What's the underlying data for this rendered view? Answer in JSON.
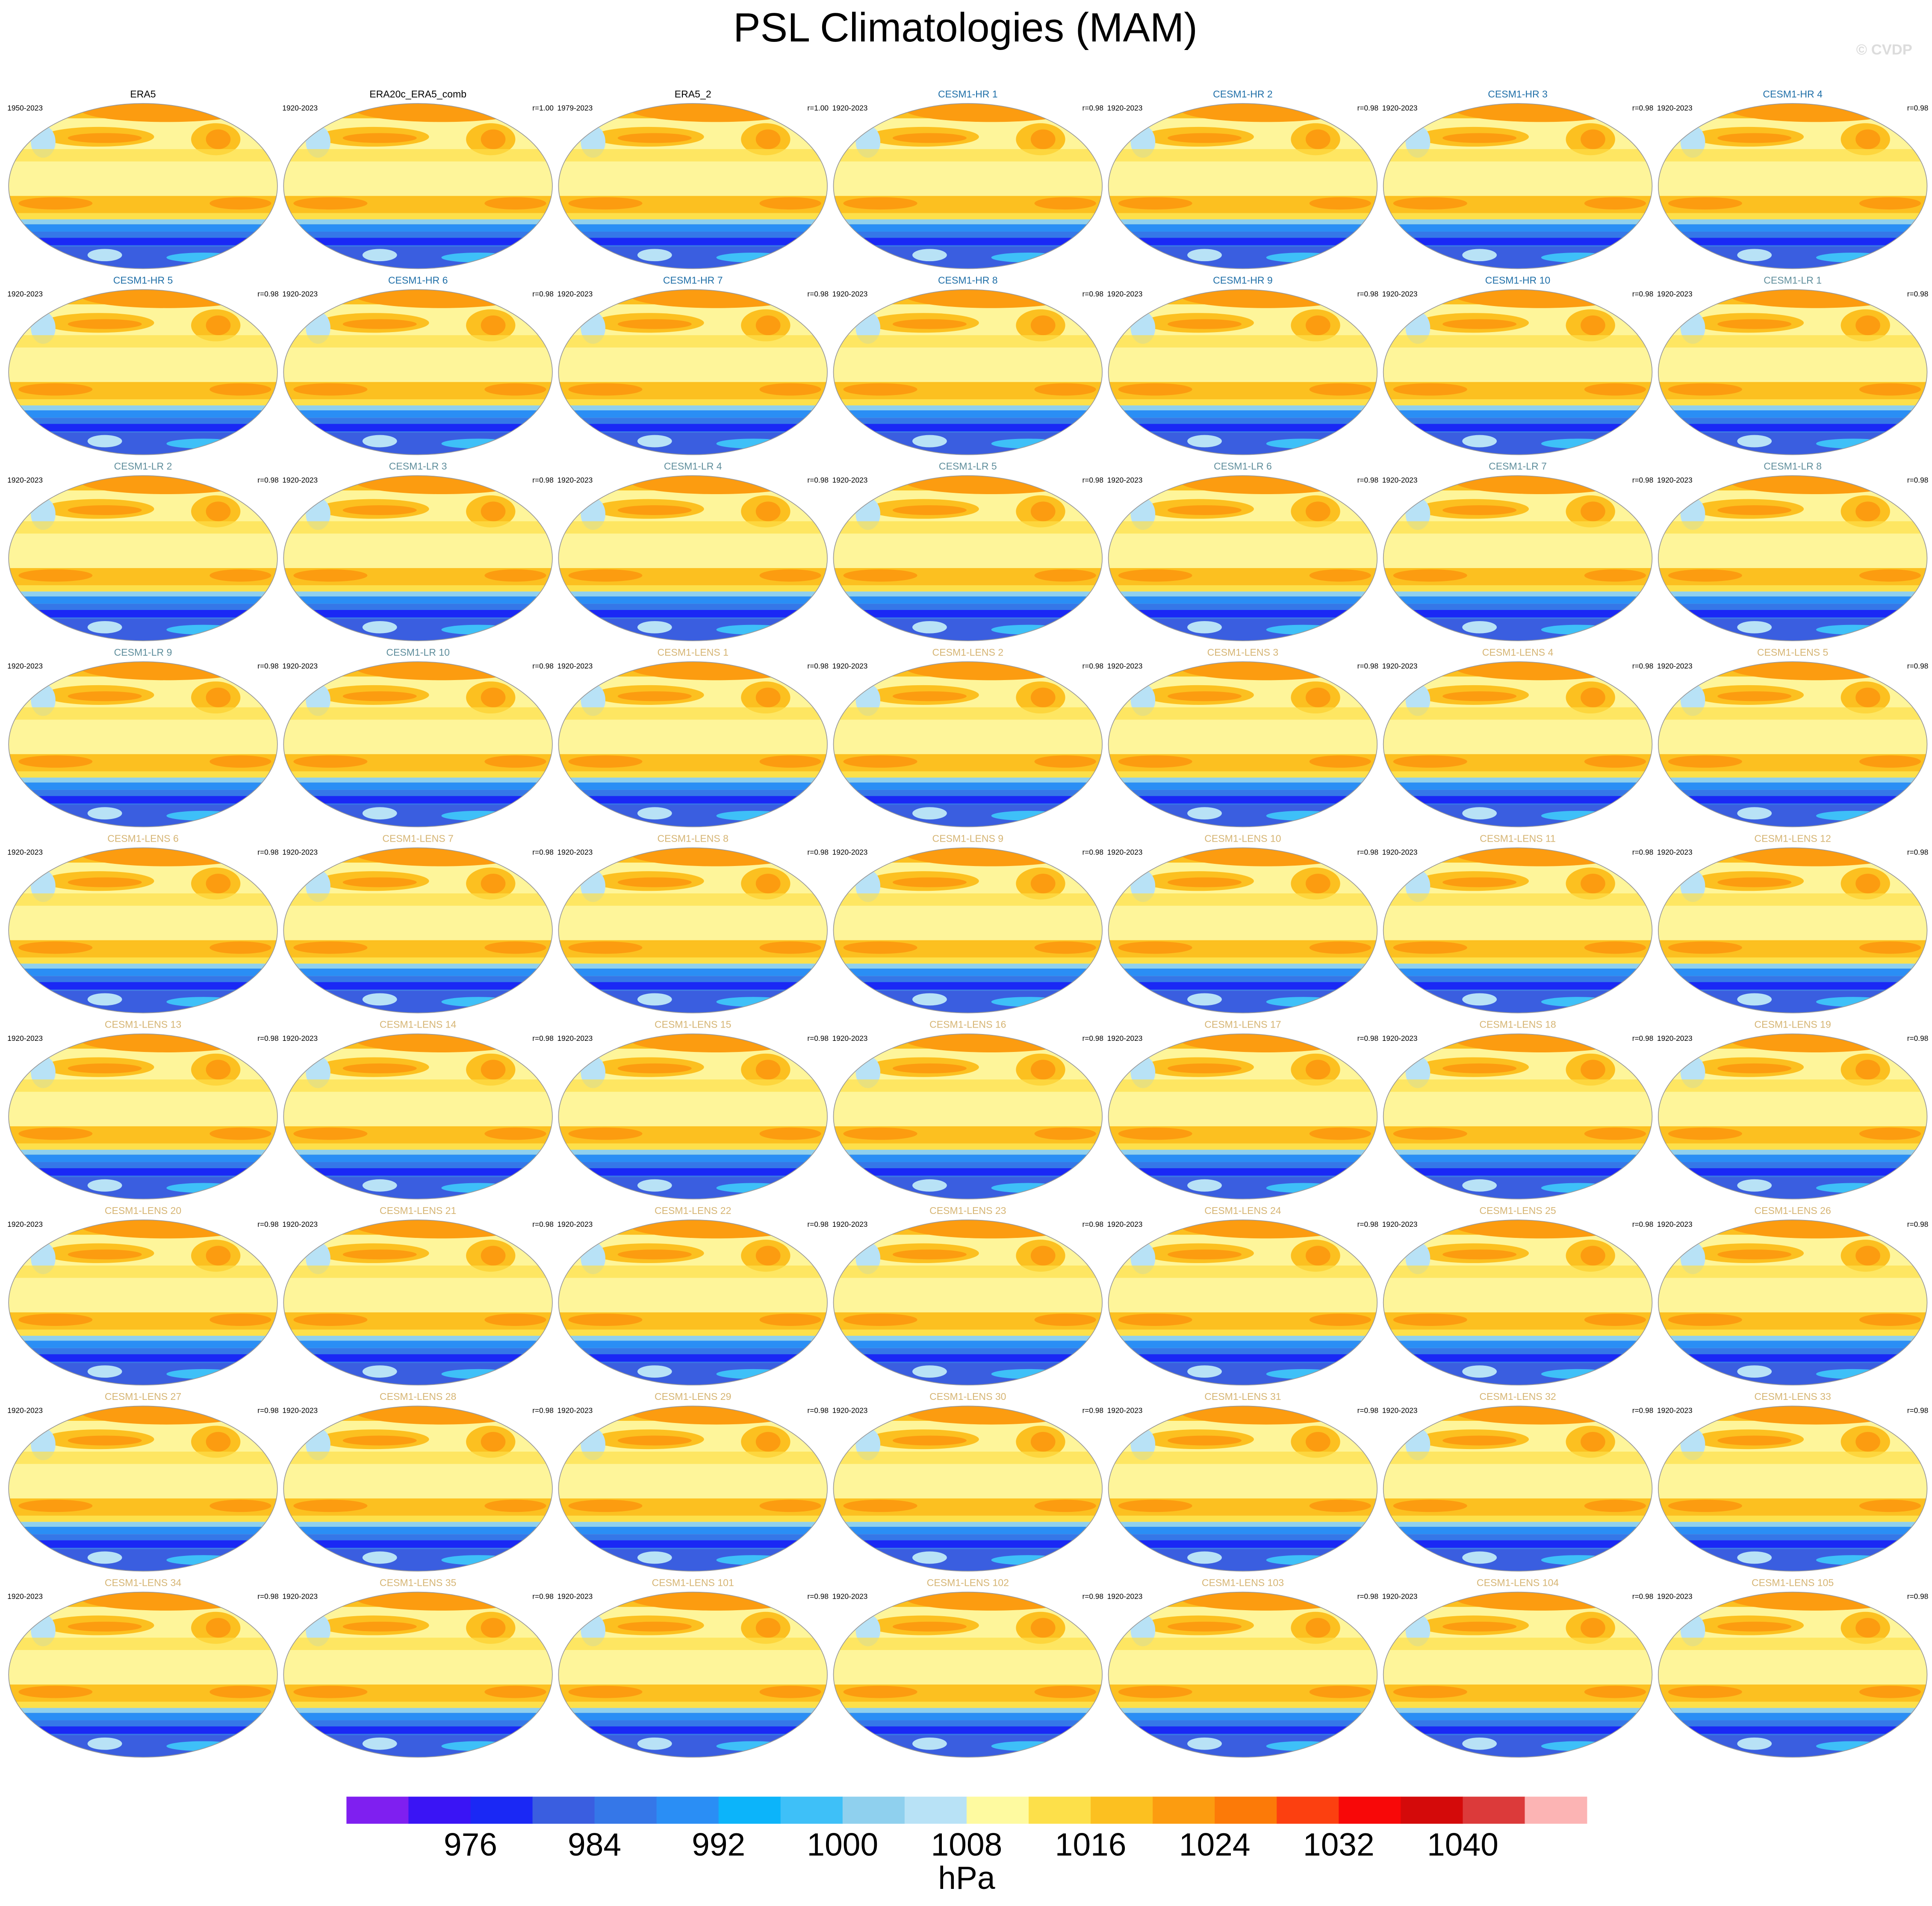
{
  "title": "PSL Climatologies (MAM)",
  "watermark": "© CVDP",
  "panels": [
    {
      "title": "ERA5",
      "period": "1950-2023",
      "r": null,
      "color": "#000000"
    },
    {
      "title": "ERA20c_ERA5_comb",
      "period": "1920-2023",
      "r": "r=1.00",
      "color": "#000000"
    },
    {
      "title": "ERA5_2",
      "period": "1979-2023",
      "r": "r=1.00",
      "color": "#000000"
    },
    {
      "title": "CESM1-HR 1",
      "period": "1920-2023",
      "r": "r=0.98",
      "color": "#1f6fa8"
    },
    {
      "title": "CESM1-HR 2",
      "period": "1920-2023",
      "r": "r=0.98",
      "color": "#1f6fa8"
    },
    {
      "title": "CESM1-HR 3",
      "period": "1920-2023",
      "r": "r=0.98",
      "color": "#1f6fa8"
    },
    {
      "title": "CESM1-HR 4",
      "period": "1920-2023",
      "r": "r=0.98",
      "color": "#1f6fa8"
    },
    {
      "title": "CESM1-HR 5",
      "period": "1920-2023",
      "r": "r=0.98",
      "color": "#1f6fa8"
    },
    {
      "title": "CESM1-HR 6",
      "period": "1920-2023",
      "r": "r=0.98",
      "color": "#1f6fa8"
    },
    {
      "title": "CESM1-HR 7",
      "period": "1920-2023",
      "r": "r=0.98",
      "color": "#1f6fa8"
    },
    {
      "title": "CESM1-HR 8",
      "period": "1920-2023",
      "r": "r=0.98",
      "color": "#1f6fa8"
    },
    {
      "title": "CESM1-HR 9",
      "period": "1920-2023",
      "r": "r=0.98",
      "color": "#1f6fa8"
    },
    {
      "title": "CESM1-HR 10",
      "period": "1920-2023",
      "r": "r=0.98",
      "color": "#1f6fa8"
    },
    {
      "title": "CESM1-LR 1",
      "period": "1920-2023",
      "r": "r=0.98",
      "color": "#5f8e9c"
    },
    {
      "title": "CESM1-LR 2",
      "period": "1920-2023",
      "r": "r=0.98",
      "color": "#5f8e9c"
    },
    {
      "title": "CESM1-LR 3",
      "period": "1920-2023",
      "r": "r=0.98",
      "color": "#5f8e9c"
    },
    {
      "title": "CESM1-LR 4",
      "period": "1920-2023",
      "r": "r=0.98",
      "color": "#5f8e9c"
    },
    {
      "title": "CESM1-LR 5",
      "period": "1920-2023",
      "r": "r=0.98",
      "color": "#5f8e9c"
    },
    {
      "title": "CESM1-LR 6",
      "period": "1920-2023",
      "r": "r=0.98",
      "color": "#5f8e9c"
    },
    {
      "title": "CESM1-LR 7",
      "period": "1920-2023",
      "r": "r=0.98",
      "color": "#5f8e9c"
    },
    {
      "title": "CESM1-LR 8",
      "period": "1920-2023",
      "r": "r=0.98",
      "color": "#5f8e9c"
    },
    {
      "title": "CESM1-LR 9",
      "period": "1920-2023",
      "r": "r=0.98",
      "color": "#5f8e9c"
    },
    {
      "title": "CESM1-LR 10",
      "period": "1920-2023",
      "r": "r=0.98",
      "color": "#5f8e9c"
    },
    {
      "title": "CESM1-LENS 1",
      "period": "1920-2023",
      "r": "r=0.98",
      "color": "#d6b574"
    },
    {
      "title": "CESM1-LENS 2",
      "period": "1920-2023",
      "r": "r=0.98",
      "color": "#d6b574"
    },
    {
      "title": "CESM1-LENS 3",
      "period": "1920-2023",
      "r": "r=0.98",
      "color": "#d6b574"
    },
    {
      "title": "CESM1-LENS 4",
      "period": "1920-2023",
      "r": "r=0.98",
      "color": "#d6b574"
    },
    {
      "title": "CESM1-LENS 5",
      "period": "1920-2023",
      "r": "r=0.98",
      "color": "#d6b574"
    },
    {
      "title": "CESM1-LENS 6",
      "period": "1920-2023",
      "r": "r=0.98",
      "color": "#d6b574"
    },
    {
      "title": "CESM1-LENS 7",
      "period": "1920-2023",
      "r": "r=0.98",
      "color": "#d6b574"
    },
    {
      "title": "CESM1-LENS 8",
      "period": "1920-2023",
      "r": "r=0.98",
      "color": "#d6b574"
    },
    {
      "title": "CESM1-LENS 9",
      "period": "1920-2023",
      "r": "r=0.98",
      "color": "#d6b574"
    },
    {
      "title": "CESM1-LENS 10",
      "period": "1920-2023",
      "r": "r=0.98",
      "color": "#d6b574"
    },
    {
      "title": "CESM1-LENS 11",
      "period": "1920-2023",
      "r": "r=0.98",
      "color": "#d6b574"
    },
    {
      "title": "CESM1-LENS 12",
      "period": "1920-2023",
      "r": "r=0.98",
      "color": "#d6b574"
    },
    {
      "title": "CESM1-LENS 13",
      "period": "1920-2023",
      "r": "r=0.98",
      "color": "#d6b574"
    },
    {
      "title": "CESM1-LENS 14",
      "period": "1920-2023",
      "r": "r=0.98",
      "color": "#d6b574"
    },
    {
      "title": "CESM1-LENS 15",
      "period": "1920-2023",
      "r": "r=0.98",
      "color": "#d6b574"
    },
    {
      "title": "CESM1-LENS 16",
      "period": "1920-2023",
      "r": "r=0.98",
      "color": "#d6b574"
    },
    {
      "title": "CESM1-LENS 17",
      "period": "1920-2023",
      "r": "r=0.98",
      "color": "#d6b574"
    },
    {
      "title": "CESM1-LENS 18",
      "period": "1920-2023",
      "r": "r=0.98",
      "color": "#d6b574"
    },
    {
      "title": "CESM1-LENS 19",
      "period": "1920-2023",
      "r": "r=0.98",
      "color": "#d6b574"
    },
    {
      "title": "CESM1-LENS 20",
      "period": "1920-2023",
      "r": "r=0.98",
      "color": "#d6b574"
    },
    {
      "title": "CESM1-LENS 21",
      "period": "1920-2023",
      "r": "r=0.98",
      "color": "#d6b574"
    },
    {
      "title": "CESM1-LENS 22",
      "period": "1920-2023",
      "r": "r=0.98",
      "color": "#d6b574"
    },
    {
      "title": "CESM1-LENS 23",
      "period": "1920-2023",
      "r": "r=0.98",
      "color": "#d6b574"
    },
    {
      "title": "CESM1-LENS 24",
      "period": "1920-2023",
      "r": "r=0.98",
      "color": "#d6b574"
    },
    {
      "title": "CESM1-LENS 25",
      "period": "1920-2023",
      "r": "r=0.98",
      "color": "#d6b574"
    },
    {
      "title": "CESM1-LENS 26",
      "period": "1920-2023",
      "r": "r=0.98",
      "color": "#d6b574"
    },
    {
      "title": "CESM1-LENS 27",
      "period": "1920-2023",
      "r": "r=0.98",
      "color": "#d6b574"
    },
    {
      "title": "CESM1-LENS 28",
      "period": "1920-2023",
      "r": "r=0.98",
      "color": "#d6b574"
    },
    {
      "title": "CESM1-LENS 29",
      "period": "1920-2023",
      "r": "r=0.98",
      "color": "#d6b574"
    },
    {
      "title": "CESM1-LENS 30",
      "period": "1920-2023",
      "r": "r=0.98",
      "color": "#d6b574"
    },
    {
      "title": "CESM1-LENS 31",
      "period": "1920-2023",
      "r": "r=0.98",
      "color": "#d6b574"
    },
    {
      "title": "CESM1-LENS 32",
      "period": "1920-2023",
      "r": "r=0.98",
      "color": "#d6b574"
    },
    {
      "title": "CESM1-LENS 33",
      "period": "1920-2023",
      "r": "r=0.98",
      "color": "#d6b574"
    },
    {
      "title": "CESM1-LENS 34",
      "period": "1920-2023",
      "r": "r=0.98",
      "color": "#d6b574"
    },
    {
      "title": "CESM1-LENS 35",
      "period": "1920-2023",
      "r": "r=0.98",
      "color": "#d6b574"
    },
    {
      "title": "CESM1-LENS 101",
      "period": "1920-2023",
      "r": "r=0.98",
      "color": "#d6b574"
    },
    {
      "title": "CESM1-LENS 102",
      "period": "1920-2023",
      "r": "r=0.98",
      "color": "#d6b574"
    },
    {
      "title": "CESM1-LENS 103",
      "period": "1920-2023",
      "r": "r=0.98",
      "color": "#d6b574"
    },
    {
      "title": "CESM1-LENS 104",
      "period": "1920-2023",
      "r": "r=0.98",
      "color": "#d6b574"
    },
    {
      "title": "CESM1-LENS 105",
      "period": "1920-2023",
      "r": "r=0.98",
      "color": "#d6b574"
    }
  ],
  "colorbar": {
    "lim": [
      968,
      1048
    ],
    "ticks": [
      976,
      984,
      992,
      1000,
      1008,
      1016,
      1024,
      1032,
      1040
    ],
    "label": "hPa",
    "colors": [
      "#7f1ff0",
      "#3a14f5",
      "#1a28f5",
      "#3a5ee0",
      "#3577e8",
      "#2a8ef5",
      "#0cb4fa",
      "#3ec0f8",
      "#8fd0ee",
      "#b8e2f6",
      "#fefaa0",
      "#fde04a",
      "#fcc020",
      "#fc9c10",
      "#fc7a08",
      "#fc4010",
      "#f80808",
      "#d40a0a",
      "#dc3a3a",
      "#fcb4b4"
    ]
  }
}
